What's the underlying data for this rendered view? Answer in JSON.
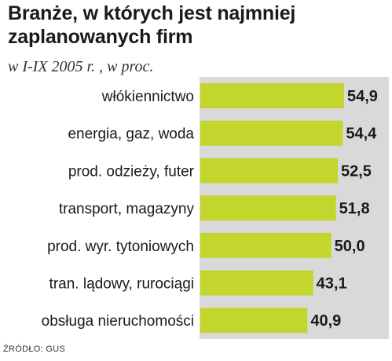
{
  "chart_data": {
    "type": "bar",
    "orientation": "horizontal",
    "title": "Branże, w których jest najmniej zaplanowanych firm",
    "subtitle": "w I-IX 2005 r. , w proc.",
    "categories": [
      "włókiennictwo",
      "energia, gaz, woda",
      "prod. odzieży, futer",
      "transport, magazyny",
      "prod. wyr. tytoniowych",
      "tran. lądowy, rurociągi",
      "obsługa nieruchomości"
    ],
    "values": [
      54.9,
      54.4,
      52.5,
      51.8,
      50.0,
      43.1,
      40.9
    ],
    "value_labels": [
      "54,9",
      "54,4",
      "52,5",
      "51,8",
      "50,0",
      "43,1",
      "40,9"
    ],
    "xlim": [
      0,
      54.9
    ],
    "grid": false,
    "legend": "none",
    "source": "ŹRÓDŁO: GUS"
  },
  "colors": {
    "bar": "#c2d62e",
    "plot_background": "#d9d9d9",
    "text": "#1a1a1a"
  }
}
